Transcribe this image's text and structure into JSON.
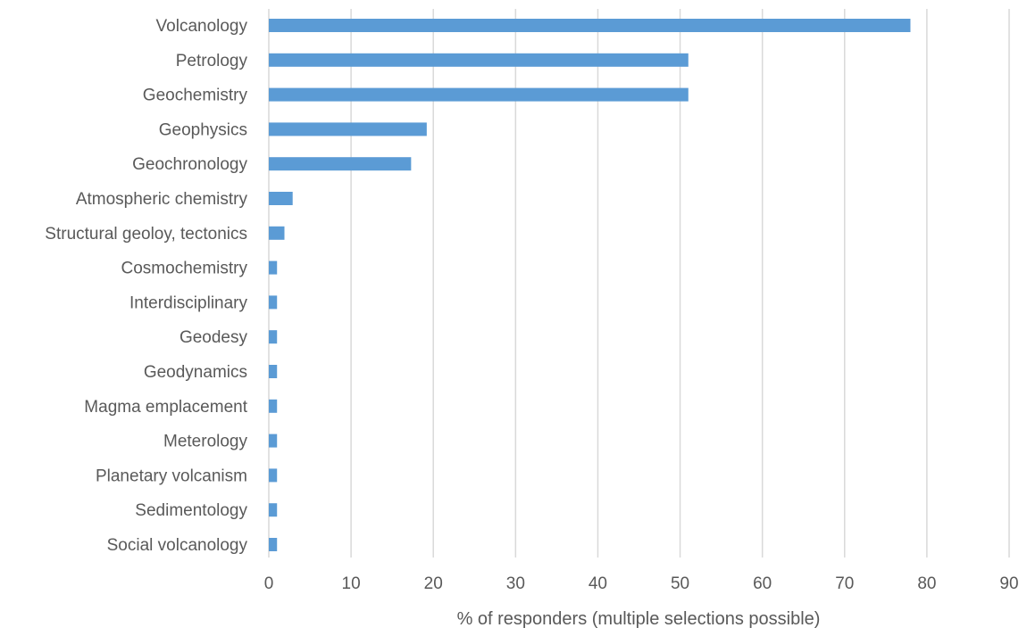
{
  "chart_data": {
    "type": "bar",
    "orientation": "horizontal",
    "title": "",
    "xlabel": "% of responders (multiple selections possible)",
    "ylabel": "",
    "xlim": [
      0,
      90
    ],
    "x_ticks": [
      0,
      10,
      20,
      30,
      40,
      50,
      60,
      70,
      80,
      90
    ],
    "grid": true,
    "legend": "none",
    "bar_color": "#5b9bd5",
    "categories": [
      "Volcanology",
      "Petrology",
      "Geochemistry",
      "Geophysics",
      "Geochronology",
      "Atmospheric chemistry",
      "Structural geoloy, tectonics",
      "Cosmochemistry",
      "Interdisciplinary",
      "Geodesy",
      "Geodynamics",
      "Magma emplacement",
      "Meterology",
      "Planetary volcanism",
      "Sedimentology",
      "Social volcanology"
    ],
    "values": [
      78,
      51,
      51,
      19.2,
      17.3,
      2.9,
      1.9,
      1,
      1,
      1,
      1,
      1,
      1,
      1,
      1,
      1
    ]
  }
}
